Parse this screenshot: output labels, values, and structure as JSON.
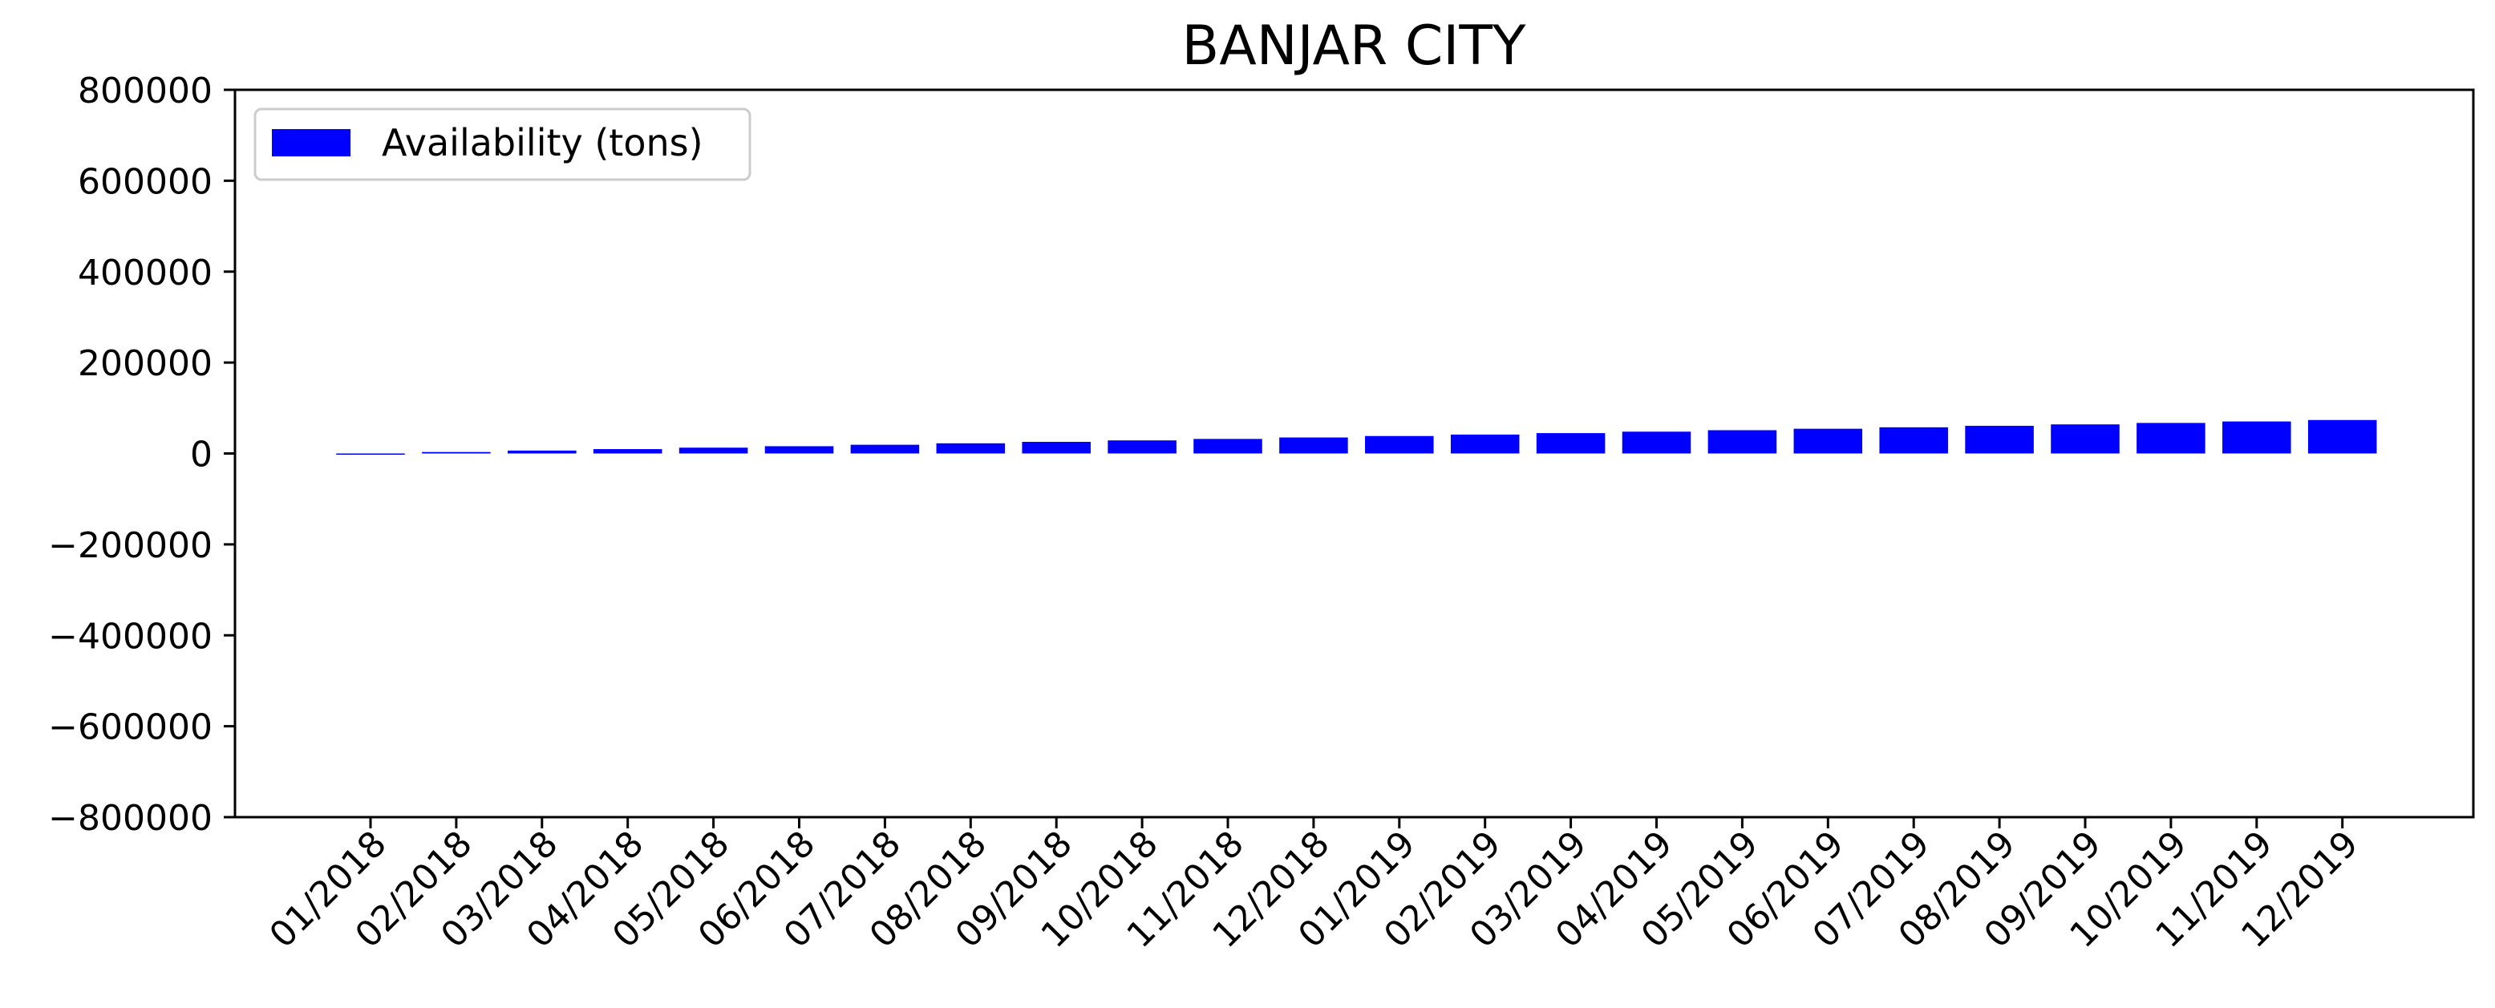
{
  "chart_data": {
    "type": "bar",
    "title": "BANJAR CITY",
    "xlabel": "",
    "ylabel": "",
    "categories": [
      "01/2018",
      "02/2018",
      "03/2018",
      "04/2018",
      "05/2018",
      "06/2018",
      "07/2018",
      "08/2018",
      "09/2018",
      "10/2018",
      "11/2018",
      "12/2018",
      "01/2019",
      "02/2019",
      "03/2019",
      "04/2019",
      "05/2019",
      "06/2019",
      "07/2019",
      "08/2019",
      "09/2019",
      "10/2019",
      "11/2019",
      "12/2019"
    ],
    "series": [
      {
        "name": "Availability (tons)",
        "color": "#0000ff",
        "values": [
          0,
          3200,
          6400,
          9600,
          12800,
          16000,
          19200,
          22400,
          25600,
          28800,
          32000,
          35200,
          38400,
          41600,
          44800,
          48000,
          51200,
          54400,
          57600,
          60800,
          64000,
          67200,
          70400,
          73600
        ]
      }
    ],
    "ylim": [
      -800000,
      800000
    ],
    "yticks": [
      800000,
      600000,
      400000,
      200000,
      0,
      -200000,
      -400000,
      -600000,
      -800000
    ],
    "ytick_labels": [
      "800000",
      "600000",
      "400000",
      "200000",
      "0",
      "−200000",
      "−400000",
      "−600000",
      "−800000"
    ],
    "xtick_rotation": -45,
    "grid": false,
    "legend": {
      "position": "top-left"
    }
  }
}
